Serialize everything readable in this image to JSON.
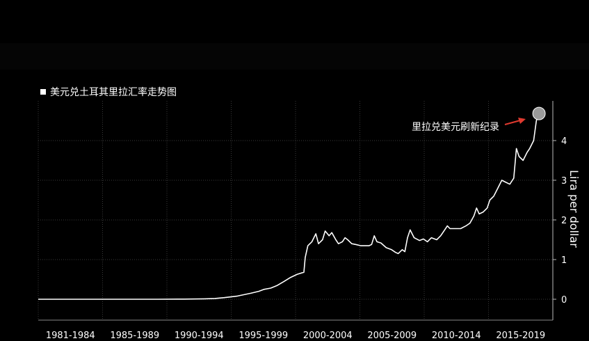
{
  "legend": {
    "label": "美元兑土耳其里拉汇率走势图"
  },
  "annotation": {
    "text": "里拉兑美元刷新纪录"
  },
  "colors": {
    "background": "#000000",
    "line": "#ffffff",
    "arrow": "#e03a2f",
    "marker": "#9a9a9a",
    "grid": "#3a3a3a"
  },
  "chart_data": {
    "type": "line",
    "title": "",
    "legend": [
      "美元兑土耳其里拉汇率走势图"
    ],
    "ylabel": "Lira per dollar",
    "y_axis_side": "right",
    "ylim": [
      -0.5,
      5
    ],
    "yticks": [
      0,
      1,
      2,
      3,
      4
    ],
    "xlim": [
      1981,
      2018.8
    ],
    "x_period_labels": [
      "1981-1984",
      "1985-1989",
      "1990-1994",
      "1995-1999",
      "2000-2004",
      "2005-2009",
      "2010-2014",
      "2015-2019"
    ],
    "grid": true,
    "series": [
      {
        "name": "美元兑土耳其里拉汇率走势图",
        "x": [
          1981.0,
          1985.0,
          1989.0,
          1990.0,
          1992.0,
          1993.5,
          1994.3,
          1995.0,
          1996.0,
          1997.0,
          1997.6,
          1998.0,
          1998.5,
          1999.0,
          1999.5,
          2000.0,
          2000.5,
          2001.0,
          2001.1,
          2001.3,
          2001.6,
          2001.9,
          2002.1,
          2002.4,
          2002.6,
          2002.9,
          2003.1,
          2003.4,
          2003.6,
          2003.9,
          2004.1,
          2004.3,
          2004.6,
          2004.9,
          2005.3,
          2005.6,
          2005.9,
          2006.1,
          2006.3,
          2006.5,
          2006.8,
          2007.2,
          2007.6,
          2007.9,
          2008.1,
          2008.4,
          2008.6,
          2008.8,
          2009.0,
          2009.3,
          2009.7,
          2010.0,
          2010.3,
          2010.6,
          2011.0,
          2011.3,
          2011.6,
          2011.8,
          2012.0,
          2012.4,
          2012.8,
          2013.2,
          2013.5,
          2013.8,
          2014.0,
          2014.2,
          2014.5,
          2014.8,
          2015.0,
          2015.3,
          2015.6,
          2015.9,
          2016.2,
          2016.5,
          2016.8,
          2017.0,
          2017.2,
          2017.5,
          2017.8,
          2018.0,
          2018.3,
          2018.5,
          2018.7
        ],
        "values": [
          0.0,
          0.0,
          0.0,
          0.0,
          0.003,
          0.01,
          0.02,
          0.04,
          0.08,
          0.15,
          0.2,
          0.25,
          0.28,
          0.35,
          0.45,
          0.55,
          0.63,
          0.68,
          1.05,
          1.35,
          1.45,
          1.65,
          1.4,
          1.5,
          1.72,
          1.6,
          1.68,
          1.5,
          1.4,
          1.45,
          1.55,
          1.5,
          1.4,
          1.38,
          1.35,
          1.35,
          1.35,
          1.38,
          1.6,
          1.45,
          1.42,
          1.3,
          1.25,
          1.18,
          1.15,
          1.25,
          1.2,
          1.55,
          1.75,
          1.55,
          1.48,
          1.52,
          1.45,
          1.55,
          1.5,
          1.6,
          1.75,
          1.85,
          1.78,
          1.78,
          1.78,
          1.85,
          1.92,
          2.1,
          2.3,
          2.15,
          2.2,
          2.3,
          2.5,
          2.6,
          2.8,
          3.0,
          2.95,
          2.9,
          3.05,
          3.8,
          3.6,
          3.5,
          3.7,
          3.8,
          4.0,
          4.5,
          4.7
        ]
      }
    ]
  }
}
